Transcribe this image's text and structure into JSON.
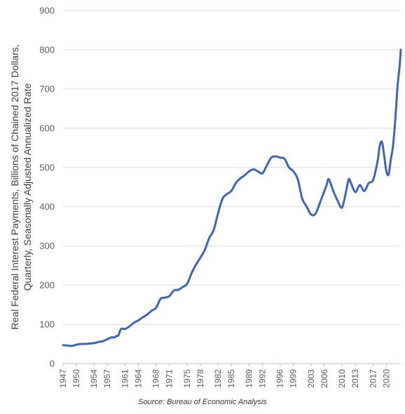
{
  "chart_data": {
    "type": "line",
    "ylabel": "Real Federal Interest Payments, Billions of Chained 2017 Dollars, Quarterly, Seasonally Adjusted Annualized Rate",
    "ylabel_lines": [
      "Real Federal Interest Payments, Billions of Chained 2017 Dollars,",
      "Quarterly, Seasonally Adjusted Annualized Rate"
    ],
    "xlabel": "",
    "ylim": [
      0,
      900
    ],
    "xlim": [
      1947,
      2023.25
    ],
    "yticks": [
      0,
      100,
      200,
      300,
      400,
      500,
      600,
      700,
      800,
      900
    ],
    "xticks": [
      1947,
      1950,
      1954,
      1957,
      1961,
      1964,
      1968,
      1971,
      1975,
      1978,
      1982,
      1985,
      1989,
      1992,
      1996,
      1999,
      2003,
      2006,
      2010,
      2013,
      2017,
      2020
    ],
    "grid": "horizontal",
    "line_color": "#3f67ae",
    "series": [
      {
        "x": [
          1947,
          1948,
          1949,
          1950,
          1951,
          1952,
          1953,
          1954,
          1955,
          1956,
          1957,
          1958,
          1958.5,
          1959,
          1959.5,
          1960,
          1960.5,
          1961,
          1962,
          1963,
          1964,
          1965,
          1966,
          1967,
          1968,
          1969,
          1970,
          1971,
          1972,
          1973,
          1974,
          1975,
          1976,
          1977,
          1978,
          1979,
          1980,
          1981,
          1982,
          1983,
          1984,
          1985,
          1986,
          1987,
          1988,
          1989,
          1990,
          1991,
          1992,
          1993,
          1994,
          1995,
          1996,
          1997,
          1998,
          1999,
          2000,
          2001,
          2002,
          2003,
          2004,
          2005,
          2006,
          2006.5,
          2007,
          2008,
          2009,
          2010,
          2011,
          2011.5,
          2012,
          2013,
          2014,
          2015,
          2016,
          2017,
          2018,
          2018.5,
          2019,
          2019.5,
          2020,
          2020.5,
          2021,
          2021.5,
          2022,
          2022.5,
          2023,
          2023.25
        ],
        "values": [
          47,
          46,
          45,
          48,
          50,
          50,
          51,
          52,
          55,
          57,
          62,
          67,
          66,
          70,
          72,
          87,
          89,
          88,
          95,
          104,
          110,
          118,
          125,
          135,
          142,
          165,
          168,
          172,
          186,
          188,
          195,
          203,
          230,
          252,
          270,
          290,
          320,
          340,
          383,
          420,
          432,
          440,
          460,
          472,
          480,
          490,
          495,
          490,
          485,
          505,
          525,
          528,
          525,
          522,
          500,
          490,
          470,
          420,
          400,
          380,
          382,
          410,
          440,
          455,
          470,
          440,
          415,
          398,
          445,
          470,
          460,
          437,
          455,
          440,
          460,
          468,
          515,
          555,
          565,
          530,
          490,
          482,
          520,
          555,
          620,
          705,
          760,
          800
        ]
      }
    ],
    "source": "Source: Bureau of Economic Analysis"
  }
}
